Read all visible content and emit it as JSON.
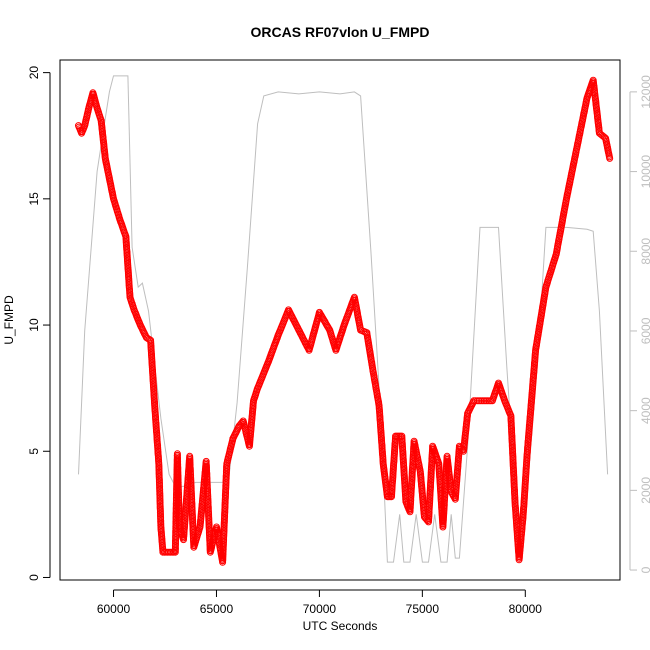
{
  "chart_data": {
    "type": "scatter",
    "title": "ORCAS RF07vlon U_FMPD",
    "xlabel": "UTC Seconds",
    "ylabel": "U_FMPD",
    "xlim": [
      57400,
      84600
    ],
    "ylim": [
      -0.1,
      20.5
    ],
    "y2lim": [
      -250,
      12800
    ],
    "x_ticks": [
      60000,
      65000,
      70000,
      75000,
      80000
    ],
    "y_ticks": [
      0,
      5,
      10,
      15,
      20
    ],
    "y2_ticks": [
      0,
      2000,
      4000,
      6000,
      8000,
      10000,
      12000
    ],
    "grid": false,
    "legend": "none",
    "series": [
      {
        "type": "scatter",
        "color": "#ff0000",
        "points": [
          [
            58300,
            17.9
          ],
          [
            58450,
            17.6
          ],
          [
            58600,
            17.9
          ],
          [
            58800,
            18.6
          ],
          [
            59000,
            19.2
          ],
          [
            59200,
            18.6
          ],
          [
            59400,
            18.1
          ],
          [
            59600,
            16.6
          ],
          [
            59800,
            15.8
          ],
          [
            60000,
            15.0
          ],
          [
            60300,
            14.2
          ],
          [
            60600,
            13.5
          ],
          [
            60800,
            11.1
          ],
          [
            61000,
            10.6
          ],
          [
            61300,
            10.0
          ],
          [
            61600,
            9.5
          ],
          [
            61800,
            9.4
          ],
          [
            62000,
            6.8
          ],
          [
            62200,
            4.5
          ],
          [
            62300,
            2.0
          ],
          [
            62400,
            1.0
          ],
          [
            62700,
            1.0
          ],
          [
            63000,
            1.0
          ],
          [
            63100,
            4.9
          ],
          [
            63200,
            2.0
          ],
          [
            63400,
            1.5
          ],
          [
            63700,
            4.8
          ],
          [
            63900,
            1.2
          ],
          [
            64200,
            2.0
          ],
          [
            64500,
            4.6
          ],
          [
            64700,
            1.0
          ],
          [
            65000,
            2.0
          ],
          [
            65300,
            0.6
          ],
          [
            65500,
            4.5
          ],
          [
            65800,
            5.5
          ],
          [
            66100,
            6.0
          ],
          [
            66300,
            6.2
          ],
          [
            66600,
            5.2
          ],
          [
            66800,
            7.0
          ],
          [
            67000,
            7.5
          ],
          [
            67500,
            8.5
          ],
          [
            68000,
            9.6
          ],
          [
            68500,
            10.6
          ],
          [
            69000,
            9.8
          ],
          [
            69500,
            9.0
          ],
          [
            70000,
            10.5
          ],
          [
            70500,
            9.8
          ],
          [
            70800,
            9.0
          ],
          [
            71200,
            10.0
          ],
          [
            71700,
            11.1
          ],
          [
            72000,
            9.8
          ],
          [
            72300,
            9.7
          ],
          [
            72600,
            8.2
          ],
          [
            72900,
            6.8
          ],
          [
            73100,
            4.5
          ],
          [
            73300,
            3.2
          ],
          [
            73500,
            3.2
          ],
          [
            73700,
            5.6
          ],
          [
            74000,
            5.6
          ],
          [
            74200,
            3.0
          ],
          [
            74400,
            2.6
          ],
          [
            74600,
            5.4
          ],
          [
            74900,
            4.2
          ],
          [
            75100,
            2.4
          ],
          [
            75300,
            2.2
          ],
          [
            75500,
            5.2
          ],
          [
            75800,
            4.5
          ],
          [
            76000,
            2.0
          ],
          [
            76200,
            4.8
          ],
          [
            76400,
            3.4
          ],
          [
            76600,
            3.1
          ],
          [
            76800,
            5.2
          ],
          [
            77000,
            5.0
          ],
          [
            77200,
            6.5
          ],
          [
            77500,
            7.0
          ],
          [
            78000,
            7.0
          ],
          [
            78400,
            7.0
          ],
          [
            78700,
            7.7
          ],
          [
            79000,
            7.0
          ],
          [
            79300,
            6.4
          ],
          [
            79500,
            3.0
          ],
          [
            79700,
            0.7
          ],
          [
            79900,
            2.5
          ],
          [
            80100,
            5.0
          ],
          [
            80500,
            9.0
          ],
          [
            81000,
            11.5
          ],
          [
            81500,
            12.8
          ],
          [
            82000,
            15.0
          ],
          [
            82500,
            17.0
          ],
          [
            83000,
            19.0
          ],
          [
            83300,
            19.7
          ],
          [
            83600,
            17.6
          ],
          [
            83900,
            17.4
          ],
          [
            84100,
            16.6
          ]
        ]
      },
      {
        "type": "line",
        "color": "#bebebe",
        "axis": "right",
        "points": [
          [
            58300,
            2400
          ],
          [
            58600,
            6000
          ],
          [
            59200,
            10000
          ],
          [
            59500,
            11000
          ],
          [
            59800,
            12000
          ],
          [
            60000,
            12400
          ],
          [
            60700,
            12400
          ],
          [
            60900,
            8100
          ],
          [
            61200,
            7100
          ],
          [
            61400,
            7200
          ],
          [
            61700,
            6500
          ],
          [
            62300,
            3800
          ],
          [
            62700,
            2400
          ],
          [
            63000,
            2100
          ],
          [
            63400,
            2100
          ],
          [
            64000,
            2200
          ],
          [
            64800,
            2200
          ],
          [
            65300,
            2200
          ],
          [
            65600,
            2300
          ],
          [
            66000,
            4200
          ],
          [
            66500,
            7600
          ],
          [
            67000,
            11200
          ],
          [
            67300,
            11900
          ],
          [
            68000,
            12000
          ],
          [
            69000,
            11950
          ],
          [
            70000,
            12000
          ],
          [
            71000,
            11950
          ],
          [
            71700,
            12000
          ],
          [
            72000,
            11900
          ],
          [
            72500,
            8000
          ],
          [
            73000,
            3700
          ],
          [
            73300,
            200
          ],
          [
            73600,
            200
          ],
          [
            73900,
            1400
          ],
          [
            74100,
            200
          ],
          [
            74400,
            200
          ],
          [
            74700,
            1400
          ],
          [
            75000,
            200
          ],
          [
            75300,
            200
          ],
          [
            75600,
            1400
          ],
          [
            75900,
            200
          ],
          [
            76200,
            200
          ],
          [
            76400,
            1400
          ],
          [
            76600,
            300
          ],
          [
            76800,
            300
          ],
          [
            77200,
            3100
          ],
          [
            77800,
            8600
          ],
          [
            78700,
            8600
          ],
          [
            79100,
            5100
          ],
          [
            79600,
            1200
          ],
          [
            80000,
            1400
          ],
          [
            80600,
            5200
          ],
          [
            81000,
            8600
          ],
          [
            82000,
            8600
          ],
          [
            83000,
            8550
          ],
          [
            83300,
            8500
          ],
          [
            83600,
            6500
          ],
          [
            84000,
            2400
          ]
        ]
      }
    ]
  }
}
